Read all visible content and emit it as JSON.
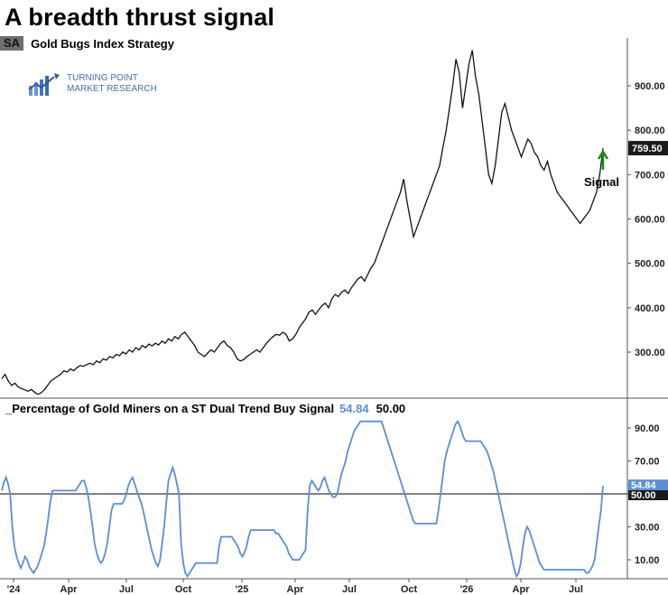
{
  "title": "A breadth thrust signal",
  "symbol": {
    "ticker": "SA",
    "name": "Gold Bugs Index  Strategy"
  },
  "logo": {
    "line1": "TURNING POINT",
    "line2": "MARKET RESEARCH"
  },
  "colors": {
    "price_line": "#111111",
    "indicator_line": "#5b8dd6",
    "signal_arrow": "#1a8a1a",
    "badge": "#6e6e6e"
  },
  "signal_label": "Signal",
  "indicator": {
    "title": "_Percentage of Gold Miners on a ST Dual Trend Buy Signal",
    "last_value": "54.84",
    "reference": "50.00"
  },
  "price_last_label": "759.50",
  "ind_last_label": "54.84",
  "ind_ref_label": "50.00",
  "chart_data": [
    {
      "type": "line",
      "series": [
        {
          "values": [
            240,
            250,
            235,
            225,
            230,
            222,
            218,
            215,
            212,
            216,
            210,
            205,
            208,
            215,
            225,
            235,
            240,
            245,
            250,
            258,
            255,
            262,
            258,
            265,
            270,
            268,
            272,
            275,
            272,
            280,
            276,
            285,
            282,
            290,
            287,
            295,
            292,
            300,
            296,
            305,
            300,
            310,
            305,
            315,
            310,
            318,
            314,
            320,
            316,
            325,
            320,
            330,
            325,
            335,
            330,
            340,
            345,
            335,
            325,
            315,
            300,
            295,
            290,
            298,
            305,
            300,
            310,
            320,
            325,
            315,
            310,
            300,
            285,
            280,
            283,
            290,
            295,
            300,
            305,
            300,
            310,
            320,
            328,
            335,
            340,
            338,
            345,
            340,
            325,
            330,
            340,
            355,
            365,
            375,
            390,
            395,
            385,
            395,
            405,
            410,
            400,
            420,
            430,
            425,
            435,
            440,
            432,
            445,
            455,
            465,
            470,
            460,
            475,
            490,
            500,
            520,
            540,
            560,
            580,
            600,
            620,
            640,
            660,
            690,
            640,
            600,
            560,
            580,
            600,
            620,
            640,
            660,
            680,
            700,
            720,
            760,
            800,
            850,
            900,
            960,
            930,
            850,
            900,
            950,
            980,
            920,
            880,
            820,
            760,
            700,
            680,
            720,
            780,
            840,
            860,
            830,
            800,
            780,
            760,
            740,
            760,
            780,
            770,
            750,
            740,
            720,
            710,
            730,
            700,
            680,
            660,
            650,
            640,
            630,
            620,
            610,
            600,
            590,
            600,
            610,
            620,
            640,
            660,
            700,
            759.5
          ]
        }
      ],
      "ylim": [
        210,
        990
      ],
      "yticks": [
        "300.00",
        "400.00",
        "500.00",
        "600.00",
        "700.00",
        "800.00",
        "900.00"
      ]
    },
    {
      "type": "line",
      "series": [
        {
          "values": [
            52,
            57,
            60,
            56,
            50,
            30,
            18,
            12,
            8,
            5,
            8,
            12,
            10,
            6,
            4,
            2,
            4,
            6,
            10,
            14,
            18,
            26,
            35,
            45,
            52,
            52,
            52,
            52,
            52,
            52,
            52,
            52,
            52,
            52,
            52,
            52,
            54,
            56,
            58,
            58,
            54,
            48,
            40,
            30,
            20,
            14,
            10,
            8,
            10,
            14,
            20,
            30,
            40,
            44,
            44,
            44,
            44,
            44,
            46,
            50,
            55,
            58,
            60,
            56,
            52,
            48,
            45,
            40,
            34,
            28,
            22,
            16,
            12,
            8,
            6,
            10,
            20,
            30,
            45,
            58,
            62,
            66,
            62,
            56,
            50,
            20,
            8,
            2,
            0,
            2,
            4,
            6,
            8,
            8,
            8,
            8,
            8,
            8,
            8,
            8,
            8,
            8,
            8,
            18,
            24,
            24,
            24,
            24,
            24,
            24,
            22,
            20,
            18,
            14,
            12,
            14,
            18,
            24,
            28,
            28,
            28,
            28,
            28,
            28,
            28,
            28,
            28,
            28,
            28,
            28,
            26,
            26,
            24,
            22,
            20,
            18,
            14,
            12,
            10,
            10,
            10,
            10,
            12,
            14,
            16,
            40,
            55,
            58,
            56,
            54,
            52,
            54,
            58,
            60,
            56,
            52,
            50,
            48,
            48,
            50,
            56,
            62,
            66,
            70,
            76,
            80,
            84,
            88,
            90,
            92,
            94,
            94,
            94,
            94,
            94,
            94,
            94,
            94,
            94,
            94,
            94,
            90,
            86,
            82,
            78,
            74,
            70,
            66,
            62,
            58,
            54,
            50,
            46,
            42,
            38,
            34,
            32,
            32,
            32,
            32,
            32,
            32,
            32,
            32,
            32,
            32,
            32,
            40,
            50,
            60,
            70,
            76,
            80,
            84,
            88,
            92,
            94,
            92,
            88,
            84,
            82,
            82,
            82,
            82,
            82,
            82,
            82,
            82,
            80,
            78,
            76,
            72,
            68,
            64,
            58,
            52,
            46,
            40,
            34,
            28,
            22,
            16,
            10,
            4,
            0,
            2,
            8,
            18,
            26,
            30,
            28,
            24,
            20,
            16,
            12,
            8,
            6,
            4,
            4,
            4,
            4,
            4,
            4,
            4,
            4,
            4,
            4,
            4,
            4,
            4,
            4,
            4,
            4,
            4,
            4,
            4,
            4,
            2,
            2,
            4,
            6,
            10,
            20,
            30,
            40,
            54.84
          ]
        }
      ],
      "ylim": [
        0,
        100
      ],
      "yticks": [
        "10.00",
        "30.00",
        "50.00",
        "70.00",
        "90.00"
      ]
    }
  ],
  "x_labels": [
    "'24",
    "Apr",
    "Jul",
    "Oct",
    "'25",
    "Apr",
    "Jul",
    "Oct",
    "'26",
    "Apr",
    "Jul"
  ]
}
